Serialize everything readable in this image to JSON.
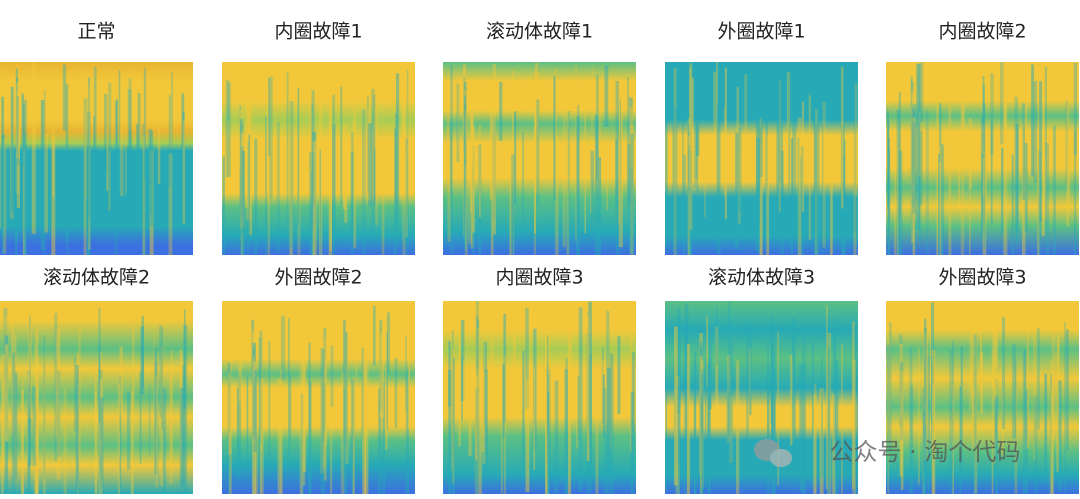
{
  "panels": [
    {
      "title": "正常"
    },
    {
      "title": "内圈故障1"
    },
    {
      "title": "滚动体故障1"
    },
    {
      "title": "外圈故障1"
    },
    {
      "title": "内圈故障2"
    },
    {
      "title": "滚动体故障2"
    },
    {
      "title": "外圈故障2"
    },
    {
      "title": "内圈故障3"
    },
    {
      "title": "滚动体故障3"
    },
    {
      "title": "外圈故障3"
    }
  ],
  "watermark": "公众号 · 淘个代码"
}
